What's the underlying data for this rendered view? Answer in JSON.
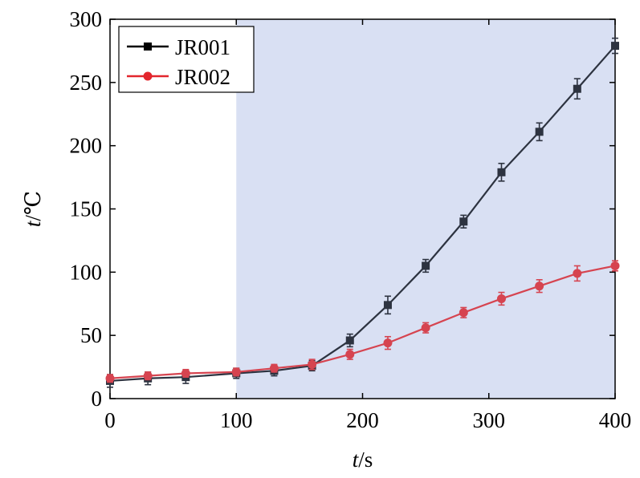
{
  "chart_data": {
    "type": "line",
    "x": [
      0,
      30,
      60,
      100,
      130,
      160,
      190,
      220,
      250,
      280,
      310,
      340,
      370,
      400
    ],
    "xlabel": {
      "italic": "t",
      "rest": "/s"
    },
    "ylabel": {
      "italic": "t",
      "rest": "/℃"
    },
    "xlim": [
      0,
      400
    ],
    "ylim": [
      0,
      300
    ],
    "xticks": [
      0,
      100,
      200,
      300,
      400
    ],
    "yticks": [
      0,
      50,
      100,
      150,
      200,
      250,
      300
    ],
    "grid": false,
    "legend_position": "top-left",
    "shaded_region": {
      "x_start": 100,
      "x_end": 400,
      "color": "#d9e0f3"
    },
    "series": [
      {
        "name": "JR001",
        "color": "#2d3340",
        "legend_color": "#000000",
        "marker": "square",
        "values": [
          14,
          16,
          17,
          20,
          22,
          26,
          46,
          74,
          105,
          140,
          179,
          211,
          245,
          279
        ],
        "errors": [
          5,
          5,
          5,
          4,
          4,
          4,
          5,
          7,
          5,
          5,
          7,
          7,
          8,
          6
        ]
      },
      {
        "name": "JR002",
        "color": "#d64450",
        "legend_color": "#e3262d",
        "marker": "circle",
        "values": [
          16,
          18,
          20,
          21,
          24,
          27,
          35,
          44,
          56,
          68,
          79,
          89,
          99,
          105
        ],
        "errors": [
          3,
          3,
          3,
          3,
          3,
          4,
          4,
          5,
          4,
          4,
          5,
          5,
          6,
          4
        ]
      }
    ]
  }
}
